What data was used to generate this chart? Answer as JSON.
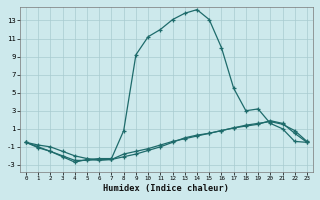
{
  "xlabel": "Humidex (Indice chaleur)",
  "background_color": "#cde9ec",
  "grid_color": "#a8cbd0",
  "line_color": "#1e6b6b",
  "xlim": [
    -0.5,
    23.5
  ],
  "ylim": [
    -3.8,
    14.5
  ],
  "yticks": [
    -3,
    -1,
    1,
    3,
    5,
    7,
    9,
    11,
    13
  ],
  "xticks": [
    0,
    1,
    2,
    3,
    4,
    5,
    6,
    7,
    8,
    9,
    10,
    11,
    12,
    13,
    14,
    15,
    16,
    17,
    18,
    19,
    20,
    21,
    22,
    23
  ],
  "curve1_x": [
    0,
    1,
    2,
    3,
    4,
    5,
    6,
    7,
    8,
    9,
    10,
    11,
    12,
    13,
    14,
    15,
    16,
    17,
    18,
    19,
    20,
    21,
    22,
    23
  ],
  "curve1_y": [
    -0.5,
    -1.1,
    -1.5,
    -2.1,
    -2.7,
    -2.4,
    -2.3,
    -2.3,
    0.8,
    9.2,
    11.2,
    12.0,
    13.1,
    13.8,
    14.2,
    13.1,
    10.0,
    5.5,
    3.0,
    3.2,
    1.6,
    1.0,
    -0.4,
    -0.5
  ],
  "curve2_x": [
    0,
    1,
    2,
    3,
    4,
    5,
    6,
    7,
    8,
    9,
    10,
    11,
    12,
    13,
    14,
    15,
    16,
    17,
    18,
    19,
    20,
    21,
    22,
    23
  ],
  "curve2_y": [
    -0.5,
    -1.0,
    -1.5,
    -2.0,
    -2.5,
    -2.5,
    -2.4,
    -2.4,
    -1.8,
    -1.5,
    -1.2,
    -0.8,
    -0.4,
    -0.1,
    0.2,
    0.5,
    0.8,
    1.1,
    1.4,
    1.6,
    1.8,
    1.5,
    0.8,
    -0.4
  ],
  "curve3_x": [
    0,
    1,
    2,
    3,
    4,
    5,
    6,
    7,
    8,
    9,
    10,
    11,
    12,
    13,
    14,
    15,
    16,
    17,
    18,
    19,
    20,
    21,
    22,
    23
  ],
  "curve3_y": [
    -0.5,
    -0.8,
    -1.0,
    -1.5,
    -2.0,
    -2.3,
    -2.5,
    -2.4,
    -2.1,
    -1.8,
    -1.4,
    -1.0,
    -0.5,
    0.0,
    0.3,
    0.5,
    0.8,
    1.1,
    1.3,
    1.5,
    1.9,
    1.6,
    0.5,
    -0.5
  ]
}
